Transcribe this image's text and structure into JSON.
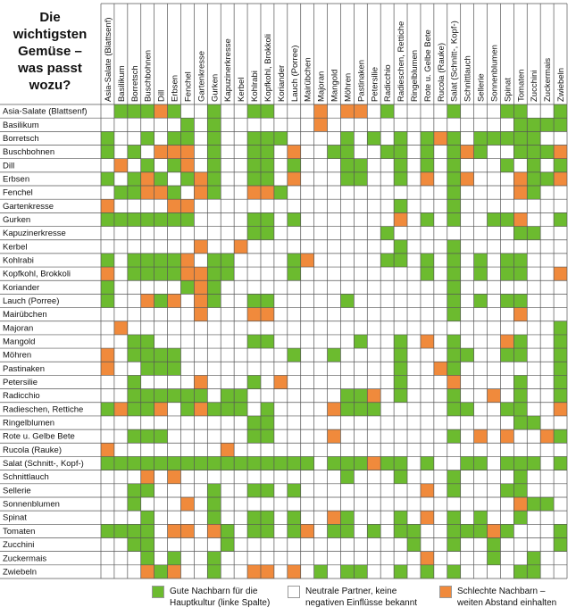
{
  "chart_data": {
    "type": "heatmap",
    "title": "Die wichtigsten Gemüse – was passt wozu?",
    "categories": [
      "Asia-Salate (Blattsenf)",
      "Basilikum",
      "Borretsch",
      "Buschbohnen",
      "Dill",
      "Erbsen",
      "Fenchel",
      "Gartenkresse",
      "Gurken",
      "Kapuzinerkresse",
      "Kerbel",
      "Kohlrabi",
      "Kopfkohl, Brokkoli",
      "Koriander",
      "Lauch (Porree)",
      "Mairübchen",
      "Majoran",
      "Mangold",
      "Möhren",
      "Pastinaken",
      "Petersilie",
      "Radicchio",
      "Radieschen, Rettiche",
      "Ringelblumen",
      "Rote u. Gelbe Bete",
      "Rucola (Rauke)",
      "Salat (Schnitt-, Kopf-)",
      "Schnittlauch",
      "Sellerie",
      "Sonnenblumen",
      "Spinat",
      "Tomaten",
      "Zucchini",
      "Zuckermais",
      "Zwiebeln"
    ],
    "legend": [
      {
        "value": 1,
        "label": "Gute Nachbarn für die Hauptkultur (linke Spalte)",
        "color": "#6cbb2f"
      },
      {
        "value": 0,
        "label": "Neutrale Partner, keine negativen Einflüsse bekannt",
        "color": "#ffffff"
      },
      {
        "value": -1,
        "label": "Schlechte Nachbarn – weiten Abstand einhalten",
        "color": "#f08a3c"
      }
    ],
    "values": [
      [
        0,
        1,
        1,
        1,
        -1,
        1,
        0,
        0,
        1,
        0,
        0,
        1,
        1,
        0,
        0,
        0,
        -1,
        0,
        -1,
        -1,
        0,
        1,
        0,
        0,
        0,
        0,
        1,
        0,
        0,
        0,
        1,
        1,
        0,
        0,
        1
      ],
      [
        0,
        0,
        0,
        0,
        0,
        0,
        1,
        0,
        1,
        0,
        0,
        0,
        0,
        0,
        0,
        0,
        -1,
        0,
        0,
        0,
        0,
        0,
        0,
        0,
        0,
        0,
        0,
        0,
        0,
        0,
        0,
        1,
        1,
        1,
        1
      ],
      [
        1,
        0,
        0,
        1,
        0,
        1,
        1,
        0,
        1,
        0,
        0,
        1,
        1,
        1,
        0,
        0,
        0,
        0,
        1,
        0,
        1,
        0,
        1,
        0,
        1,
        -1,
        1,
        0,
        1,
        1,
        1,
        1,
        1,
        0,
        0
      ],
      [
        1,
        0,
        1,
        0,
        -1,
        -1,
        -1,
        0,
        1,
        0,
        0,
        1,
        1,
        0,
        -1,
        0,
        0,
        1,
        1,
        0,
        0,
        1,
        1,
        0,
        1,
        0,
        1,
        -1,
        1,
        0,
        0,
        1,
        1,
        1,
        -1
      ],
      [
        0,
        -1,
        0,
        1,
        0,
        1,
        -1,
        0,
        1,
        0,
        0,
        1,
        1,
        0,
        1,
        0,
        0,
        0,
        1,
        1,
        0,
        0,
        1,
        0,
        1,
        0,
        1,
        0,
        0,
        0,
        1,
        0,
        1,
        0,
        1
      ],
      [
        1,
        0,
        1,
        -1,
        1,
        0,
        1,
        -1,
        1,
        0,
        0,
        1,
        1,
        0,
        -1,
        0,
        0,
        0,
        1,
        1,
        0,
        0,
        1,
        0,
        -1,
        0,
        1,
        -1,
        0,
        0,
        0,
        -1,
        1,
        1,
        -1
      ],
      [
        0,
        1,
        1,
        -1,
        -1,
        1,
        0,
        -1,
        1,
        0,
        0,
        -1,
        -1,
        1,
        0,
        0,
        0,
        0,
        0,
        0,
        0,
        0,
        0,
        0,
        0,
        0,
        1,
        0,
        0,
        0,
        0,
        -1,
        1,
        0,
        0
      ],
      [
        -1,
        0,
        0,
        0,
        0,
        -1,
        -1,
        0,
        0,
        0,
        0,
        0,
        0,
        0,
        0,
        0,
        0,
        0,
        0,
        0,
        0,
        0,
        1,
        0,
        0,
        0,
        1,
        0,
        0,
        0,
        0,
        0,
        0,
        0,
        0
      ],
      [
        1,
        1,
        1,
        1,
        1,
        1,
        1,
        0,
        0,
        0,
        0,
        1,
        1,
        0,
        1,
        0,
        0,
        0,
        0,
        0,
        0,
        0,
        -1,
        0,
        1,
        0,
        1,
        0,
        0,
        1,
        1,
        -1,
        0,
        0,
        1
      ],
      [
        0,
        0,
        0,
        0,
        0,
        0,
        0,
        0,
        0,
        0,
        0,
        1,
        1,
        0,
        0,
        0,
        0,
        0,
        0,
        0,
        0,
        1,
        0,
        0,
        0,
        0,
        0,
        0,
        0,
        0,
        0,
        1,
        1,
        0,
        0
      ],
      [
        0,
        0,
        0,
        0,
        0,
        0,
        0,
        -1,
        0,
        0,
        -1,
        0,
        0,
        0,
        0,
        0,
        0,
        0,
        0,
        0,
        0,
        0,
        1,
        0,
        0,
        0,
        1,
        0,
        0,
        0,
        0,
        0,
        0,
        0,
        0
      ],
      [
        1,
        0,
        1,
        1,
        1,
        1,
        -1,
        0,
        1,
        1,
        0,
        0,
        0,
        0,
        1,
        -1,
        0,
        0,
        0,
        0,
        0,
        1,
        1,
        0,
        1,
        0,
        1,
        0,
        1,
        0,
        1,
        1,
        0,
        0,
        0
      ],
      [
        -1,
        0,
        1,
        1,
        1,
        1,
        -1,
        -1,
        1,
        1,
        0,
        0,
        0,
        0,
        1,
        0,
        0,
        0,
        0,
        0,
        0,
        0,
        0,
        0,
        1,
        0,
        1,
        0,
        1,
        0,
        1,
        1,
        0,
        0,
        -1
      ],
      [
        1,
        0,
        0,
        0,
        0,
        0,
        1,
        -1,
        1,
        0,
        0,
        0,
        0,
        0,
        0,
        0,
        0,
        0,
        0,
        0,
        0,
        0,
        0,
        0,
        0,
        0,
        1,
        0,
        0,
        0,
        0,
        0,
        0,
        0,
        0
      ],
      [
        1,
        0,
        0,
        -1,
        1,
        -1,
        0,
        -1,
        1,
        0,
        0,
        1,
        1,
        0,
        0,
        0,
        0,
        0,
        1,
        0,
        0,
        0,
        0,
        0,
        0,
        0,
        1,
        0,
        1,
        0,
        1,
        1,
        0,
        0,
        0
      ],
      [
        0,
        0,
        0,
        0,
        0,
        0,
        0,
        -1,
        0,
        0,
        0,
        -1,
        -1,
        0,
        0,
        0,
        0,
        0,
        0,
        0,
        0,
        0,
        0,
        0,
        0,
        0,
        1,
        0,
        0,
        0,
        0,
        -1,
        0,
        0,
        0
      ],
      [
        0,
        -1,
        0,
        0,
        0,
        0,
        0,
        0,
        0,
        0,
        0,
        0,
        0,
        0,
        0,
        0,
        0,
        0,
        0,
        0,
        0,
        0,
        0,
        0,
        0,
        0,
        0,
        0,
        0,
        0,
        0,
        0,
        0,
        0,
        1
      ],
      [
        0,
        0,
        1,
        1,
        0,
        0,
        0,
        0,
        0,
        0,
        0,
        1,
        1,
        0,
        0,
        0,
        0,
        0,
        0,
        1,
        0,
        0,
        1,
        0,
        -1,
        0,
        1,
        0,
        0,
        0,
        -1,
        1,
        0,
        0,
        1
      ],
      [
        -1,
        0,
        1,
        1,
        1,
        1,
        0,
        0,
        0,
        0,
        0,
        0,
        0,
        0,
        1,
        0,
        0,
        1,
        0,
        0,
        0,
        0,
        1,
        0,
        0,
        0,
        1,
        1,
        0,
        0,
        1,
        1,
        0,
        0,
        1
      ],
      [
        -1,
        0,
        0,
        1,
        1,
        1,
        0,
        0,
        0,
        0,
        0,
        0,
        0,
        0,
        0,
        0,
        0,
        0,
        0,
        0,
        0,
        0,
        1,
        0,
        0,
        -1,
        1,
        0,
        0,
        0,
        0,
        0,
        0,
        0,
        1
      ],
      [
        0,
        0,
        1,
        0,
        0,
        0,
        0,
        -1,
        0,
        0,
        0,
        1,
        0,
        -1,
        0,
        0,
        0,
        0,
        0,
        0,
        0,
        0,
        1,
        0,
        0,
        0,
        -1,
        0,
        0,
        0,
        0,
        1,
        0,
        0,
        1
      ],
      [
        0,
        0,
        1,
        1,
        1,
        1,
        1,
        1,
        0,
        1,
        1,
        0,
        0,
        0,
        0,
        0,
        0,
        0,
        1,
        1,
        -1,
        0,
        1,
        0,
        0,
        0,
        1,
        0,
        0,
        -1,
        0,
        1,
        0,
        0,
        1
      ],
      [
        1,
        -1,
        1,
        1,
        -1,
        0,
        1,
        -1,
        1,
        1,
        1,
        0,
        1,
        0,
        0,
        0,
        0,
        -1,
        1,
        1,
        1,
        0,
        0,
        0,
        0,
        0,
        1,
        1,
        0,
        0,
        1,
        1,
        0,
        0,
        -1
      ],
      [
        0,
        0,
        0,
        0,
        0,
        0,
        0,
        0,
        0,
        0,
        0,
        1,
        1,
        0,
        0,
        0,
        0,
        0,
        0,
        0,
        0,
        0,
        0,
        0,
        0,
        0,
        0,
        0,
        0,
        0,
        0,
        1,
        1,
        0,
        0
      ],
      [
        0,
        0,
        1,
        1,
        1,
        0,
        0,
        0,
        0,
        0,
        0,
        1,
        1,
        0,
        0,
        0,
        0,
        -1,
        0,
        0,
        0,
        0,
        0,
        0,
        0,
        0,
        1,
        0,
        -1,
        0,
        -1,
        0,
        0,
        -1,
        1
      ],
      [
        -1,
        0,
        0,
        0,
        0,
        0,
        0,
        0,
        0,
        -1,
        0,
        0,
        0,
        0,
        0,
        0,
        0,
        0,
        0,
        0,
        0,
        0,
        0,
        0,
        0,
        0,
        0,
        0,
        0,
        0,
        0,
        0,
        0,
        0,
        0
      ],
      [
        1,
        1,
        1,
        1,
        1,
        1,
        1,
        1,
        1,
        1,
        1,
        1,
        1,
        1,
        1,
        1,
        0,
        1,
        1,
        1,
        -1,
        1,
        1,
        0,
        1,
        0,
        0,
        1,
        1,
        0,
        1,
        1,
        1,
        0,
        1
      ],
      [
        0,
        0,
        0,
        -1,
        0,
        -1,
        0,
        0,
        0,
        0,
        0,
        0,
        0,
        0,
        0,
        0,
        0,
        0,
        1,
        0,
        0,
        0,
        1,
        0,
        0,
        0,
        1,
        0,
        0,
        0,
        0,
        1,
        0,
        0,
        0
      ],
      [
        0,
        0,
        1,
        1,
        0,
        0,
        0,
        0,
        1,
        0,
        0,
        1,
        1,
        0,
        1,
        0,
        0,
        0,
        0,
        0,
        0,
        0,
        0,
        0,
        -1,
        0,
        1,
        0,
        0,
        0,
        1,
        1,
        0,
        0,
        0
      ],
      [
        0,
        0,
        1,
        0,
        0,
        0,
        -1,
        0,
        1,
        0,
        0,
        0,
        0,
        0,
        0,
        0,
        0,
        0,
        0,
        0,
        0,
        0,
        0,
        0,
        0,
        0,
        0,
        0,
        0,
        0,
        0,
        -1,
        1,
        1,
        0
      ],
      [
        0,
        0,
        0,
        1,
        0,
        0,
        0,
        0,
        1,
        0,
        0,
        1,
        1,
        0,
        1,
        0,
        0,
        -1,
        1,
        0,
        0,
        0,
        1,
        0,
        -1,
        0,
        1,
        0,
        1,
        0,
        0,
        1,
        0,
        0,
        0
      ],
      [
        1,
        1,
        1,
        1,
        0,
        -1,
        -1,
        0,
        -1,
        1,
        0,
        1,
        1,
        0,
        1,
        -1,
        0,
        1,
        1,
        0,
        1,
        0,
        1,
        1,
        0,
        0,
        1,
        1,
        1,
        -1,
        1,
        0,
        0,
        0,
        1
      ],
      [
        0,
        0,
        1,
        1,
        0,
        0,
        0,
        0,
        0,
        1,
        0,
        0,
        0,
        0,
        0,
        0,
        0,
        0,
        0,
        0,
        0,
        0,
        0,
        1,
        0,
        0,
        1,
        0,
        0,
        1,
        0,
        0,
        0,
        0,
        1
      ],
      [
        0,
        0,
        0,
        1,
        0,
        1,
        0,
        0,
        1,
        0,
        0,
        0,
        0,
        0,
        0,
        0,
        0,
        0,
        0,
        0,
        0,
        0,
        0,
        0,
        -1,
        0,
        0,
        0,
        0,
        1,
        0,
        0,
        1,
        0,
        0
      ],
      [
        0,
        0,
        0,
        -1,
        1,
        -1,
        0,
        0,
        1,
        0,
        0,
        -1,
        -1,
        0,
        -1,
        0,
        1,
        0,
        1,
        1,
        0,
        0,
        1,
        0,
        1,
        0,
        1,
        0,
        0,
        0,
        0,
        1,
        1,
        0,
        0
      ]
    ]
  }
}
